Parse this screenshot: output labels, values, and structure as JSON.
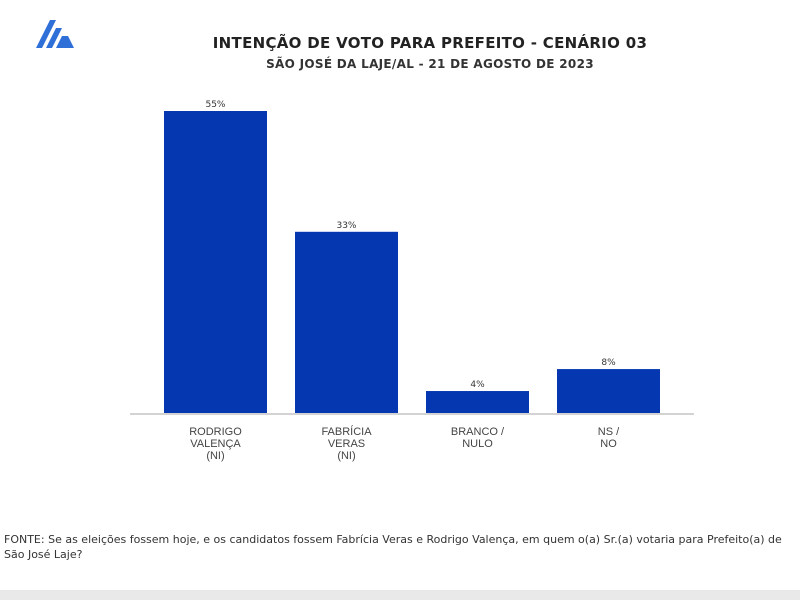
{
  "header": {
    "title": "INTENÇÃO DE VOTO PARA PREFEITO - CENÁRIO 03",
    "subtitle": "SÃO JOSÉ DA LAJE/AL - 21 DE AGOSTO DE 2023",
    "logo_icon": "brand-logo-icon"
  },
  "colors": {
    "bar": "#0437b0",
    "baseline": "#d3d3d3",
    "logo": "#2f6fd8"
  },
  "chart_data": {
    "type": "bar",
    "categories": [
      [
        "RODRIGO",
        "VALENÇA",
        "(NI)"
      ],
      [
        "FABRÍCIA",
        "VERAS",
        "(NI)"
      ],
      [
        "BRANCO /",
        "NULO"
      ],
      [
        "NS /",
        "NO"
      ]
    ],
    "values": [
      55,
      33,
      4,
      8
    ],
    "value_labels": [
      "55%",
      "33%",
      "4%",
      "8%"
    ],
    "title": "INTENÇÃO DE VOTO PARA PREFEITO - CENÁRIO 03",
    "subtitle": "SÃO JOSÉ DA LAJE/AL - 21 DE AGOSTO DE 2023",
    "xlabel": "",
    "ylabel": "",
    "ylim": [
      0,
      55
    ],
    "grid": false,
    "legend": "none"
  },
  "footer": {
    "source_text": "FONTE: Se as eleições fossem hoje, e os candidatos fossem Fabrícia Veras e Rodrigo Valença, em quem o(a) Sr.(a) votaria para Prefeito(a) de São José Laje?"
  }
}
